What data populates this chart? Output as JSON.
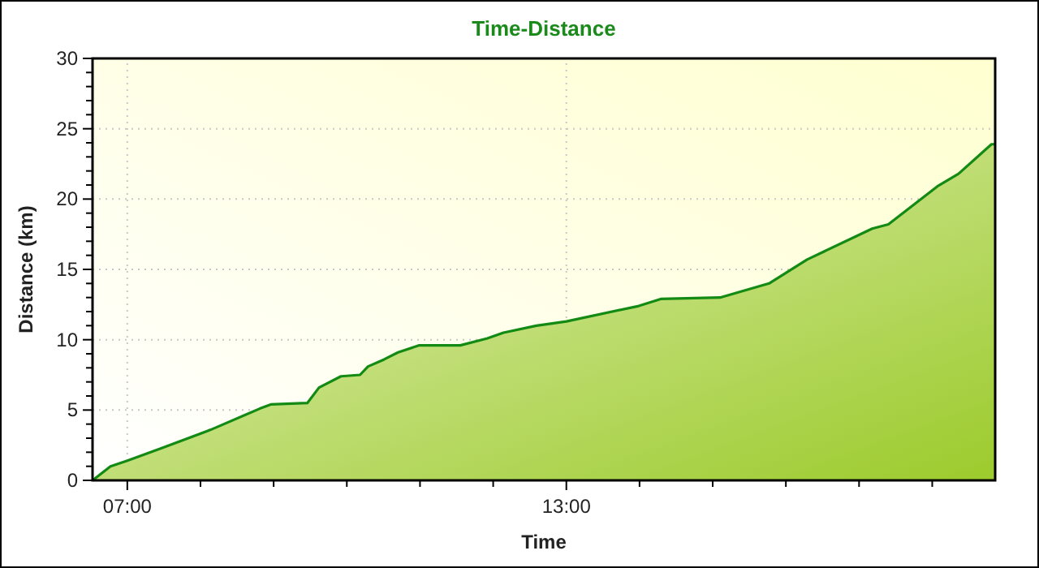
{
  "chart_data": {
    "type": "area",
    "title": "Time-Distance",
    "xlabel": "Time",
    "ylabel": "Distance (km)",
    "x": [
      6.525,
      6.77,
      7.0,
      7.47,
      8.14,
      8.81,
      8.96,
      9.46,
      9.62,
      9.92,
      10.18,
      10.29,
      10.51,
      10.7,
      10.99,
      11.55,
      11.92,
      12.14,
      12.59,
      13.0,
      13.99,
      14.29,
      15.1,
      15.77,
      16.29,
      17.18,
      17.4,
      18.07,
      18.36,
      18.81,
      18.86
    ],
    "series": [
      {
        "color": "#138a13",
        "values": [
          0,
          1.0,
          1.4,
          2.3,
          3.6,
          5.1,
          5.4,
          5.5,
          6.6,
          7.4,
          7.5,
          8.1,
          8.6,
          9.1,
          9.6,
          9.6,
          10.1,
          10.5,
          11.0,
          11.3,
          12.4,
          12.9,
          13.0,
          14.0,
          15.7,
          17.9,
          18.2,
          20.9,
          21.8,
          23.9,
          23.9
        ]
      }
    ],
    "xlim": [
      6.525,
      18.86
    ],
    "xticks": [
      {
        "value": 7,
        "label": "07:00"
      },
      {
        "value": 8,
        "label": null
      },
      {
        "value": 9,
        "label": null
      },
      {
        "value": 10,
        "label": null
      },
      {
        "value": 11,
        "label": null
      },
      {
        "value": 12,
        "label": null
      },
      {
        "value": 13,
        "label": "13:00"
      },
      {
        "value": 14,
        "label": null
      },
      {
        "value": 15,
        "label": null
      },
      {
        "value": 16,
        "label": null
      },
      {
        "value": 17,
        "label": null
      },
      {
        "value": 18,
        "label": null
      }
    ],
    "ylim": [
      0,
      30
    ],
    "yticks": [
      0,
      {
        "value": 1,
        "label": null
      },
      {
        "value": 2,
        "label": null
      },
      {
        "value": 3,
        "label": null
      },
      {
        "value": 4,
        "label": null
      },
      5,
      {
        "value": 6,
        "label": null
      },
      {
        "value": 7,
        "label": null
      },
      {
        "value": 8,
        "label": null
      },
      {
        "value": 9,
        "label": null
      },
      10,
      {
        "value": 11,
        "label": null
      },
      {
        "value": 12,
        "label": null
      },
      {
        "value": 13,
        "label": null
      },
      {
        "value": 14,
        "label": null
      },
      15,
      {
        "value": 16,
        "label": null
      },
      {
        "value": 17,
        "label": null
      },
      {
        "value": 18,
        "label": null
      },
      {
        "value": 19,
        "label": null
      },
      20,
      {
        "value": 21,
        "label": null
      },
      {
        "value": 22,
        "label": null
      },
      {
        "value": 23,
        "label": null
      },
      {
        "value": 24,
        "label": null
      },
      25,
      {
        "value": 26,
        "label": null
      },
      {
        "value": 27,
        "label": null
      },
      {
        "value": 28,
        "label": null
      },
      {
        "value": 29,
        "label": null
      },
      30
    ],
    "grid": true
  }
}
